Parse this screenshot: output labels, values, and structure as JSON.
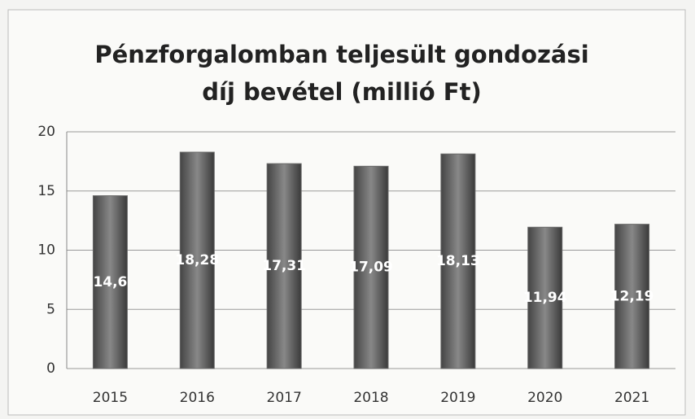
{
  "chart_data": {
    "type": "bar",
    "title": "Pénzforgalomban teljesült gondozási díj bevétel (millió Ft)",
    "categories": [
      "2015",
      "2016",
      "2017",
      "2018",
      "2019",
      "2020",
      "2021"
    ],
    "values": [
      14.6,
      18.28,
      17.31,
      17.09,
      18.13,
      11.94,
      12.19
    ],
    "value_labels": [
      "14,6",
      "18,28",
      "17,31",
      "17,09",
      "18,13",
      "11,94",
      "12,19"
    ],
    "color": "#6a6a6a",
    "ylim": [
      0,
      20
    ],
    "yticks": [
      0,
      5,
      10,
      15,
      20
    ],
    "grid": true
  }
}
